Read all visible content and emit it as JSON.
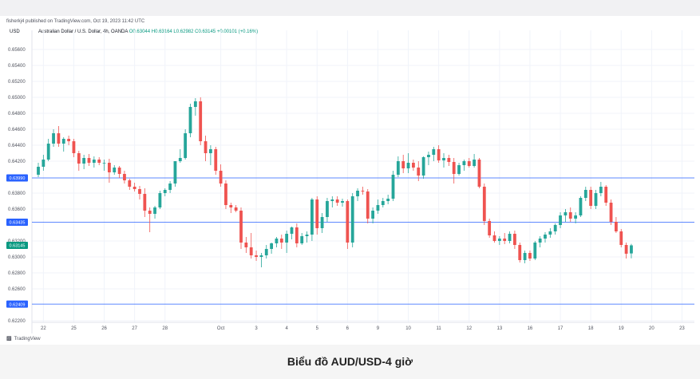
{
  "header": {
    "published_by": "fisherkj4 published on TradingView.com, Oct 19, 2023 11:42 UTC",
    "symbol": "Australian Dollar / U.S. Dollar, 4h, OANDA",
    "ohlc": "O0.63044 H0.63164 L0.62982 C0.63145 +0.00101 (+0.16%)",
    "currency": "USD"
  },
  "branding": {
    "label": "TradingView"
  },
  "caption": "Biểu đồ AUD/USD-4 giờ",
  "chart_data": {
    "type": "candlestick",
    "title": "Australian Dollar / U.S. Dollar, 4h, OANDA",
    "ylim": [
      0.6218,
      0.6578
    ],
    "yticks": [
      {
        "value": 0.656,
        "label": "0.65600"
      },
      {
        "value": 0.654,
        "label": "0.65400"
      },
      {
        "value": 0.652,
        "label": "0.65200"
      },
      {
        "value": 0.65,
        "label": "0.65000"
      },
      {
        "value": 0.648,
        "label": "0.64800"
      },
      {
        "value": 0.646,
        "label": "0.64600"
      },
      {
        "value": 0.644,
        "label": "0.64400"
      },
      {
        "value": 0.642,
        "label": "0.64200"
      },
      {
        "value": 0.638,
        "label": "0.63800"
      },
      {
        "value": 0.636,
        "label": "0.63600"
      },
      {
        "value": 0.632,
        "label": "0.63200"
      },
      {
        "value": 0.63,
        "label": "0.63000"
      },
      {
        "value": 0.628,
        "label": "0.62800"
      },
      {
        "value": 0.626,
        "label": "0.62600"
      },
      {
        "value": 0.622,
        "label": "0.62200"
      }
    ],
    "xticks": [
      "22",
      "25",
      "26",
      "27",
      "28",
      "Oct",
      "3",
      "4",
      "5",
      "6",
      "9",
      "10",
      "11",
      "12",
      "13",
      "16",
      "17",
      "18",
      "19",
      "20",
      "23"
    ],
    "xtick_index": [
      1,
      7,
      13,
      19,
      25,
      36,
      43,
      49,
      55,
      61,
      67,
      73,
      79,
      85,
      91,
      97,
      103,
      109,
      115,
      121,
      127
    ],
    "horizontal_lines": [
      {
        "value": 0.6399,
        "label": "0.63990",
        "color": "#2962ff"
      },
      {
        "value": 0.63435,
        "label": "0.63435",
        "color": "#2962ff"
      },
      {
        "value": 0.62409,
        "label": "0.62409",
        "color": "#2962ff"
      }
    ],
    "last_price": {
      "value": 0.63145,
      "label": "0.63145",
      "color": "#089981"
    },
    "colors": {
      "up": "#26a69a",
      "down": "#ef5350",
      "grid": "#f0f3fa",
      "level_line": "#2962ff"
    },
    "candles": [
      [
        0.6403,
        0.6418,
        0.64,
        0.6413
      ],
      [
        0.6413,
        0.6428,
        0.6408,
        0.6422
      ],
      [
        0.6422,
        0.6448,
        0.642,
        0.6442
      ],
      [
        0.6442,
        0.646,
        0.6438,
        0.6455
      ],
      [
        0.6455,
        0.6464,
        0.6438,
        0.6442
      ],
      [
        0.6442,
        0.645,
        0.6432,
        0.6448
      ],
      [
        0.6448,
        0.6452,
        0.644,
        0.6445
      ],
      [
        0.6445,
        0.6448,
        0.6425,
        0.643
      ],
      [
        0.643,
        0.6433,
        0.6408,
        0.6417
      ],
      [
        0.6417,
        0.6428,
        0.641,
        0.6424
      ],
      [
        0.6424,
        0.6429,
        0.6414,
        0.6418
      ],
      [
        0.6418,
        0.6426,
        0.6412,
        0.6422
      ],
      [
        0.6422,
        0.6425,
        0.6415,
        0.6418
      ],
      [
        0.6418,
        0.6422,
        0.6408,
        0.6418
      ],
      [
        0.6418,
        0.6423,
        0.6393,
        0.6406
      ],
      [
        0.6406,
        0.6415,
        0.6403,
        0.6412
      ],
      [
        0.6412,
        0.6414,
        0.6399,
        0.6404
      ],
      [
        0.6404,
        0.6408,
        0.6392,
        0.6396
      ],
      [
        0.6396,
        0.6398,
        0.6384,
        0.6388
      ],
      [
        0.6388,
        0.6393,
        0.6382,
        0.6385
      ],
      [
        0.6385,
        0.6389,
        0.6372,
        0.6379
      ],
      [
        0.6379,
        0.6386,
        0.635,
        0.6358
      ],
      [
        0.6358,
        0.6362,
        0.6331,
        0.6354
      ],
      [
        0.6354,
        0.6364,
        0.6348,
        0.6362
      ],
      [
        0.6362,
        0.6383,
        0.636,
        0.638
      ],
      [
        0.638,
        0.6386,
        0.6376,
        0.6384
      ],
      [
        0.6384,
        0.6395,
        0.638,
        0.6392
      ],
      [
        0.6392,
        0.642,
        0.6388,
        0.642
      ],
      [
        0.642,
        0.6435,
        0.6418,
        0.6424
      ],
      [
        0.6424,
        0.646,
        0.6422,
        0.6455
      ],
      [
        0.6455,
        0.6492,
        0.645,
        0.6488
      ],
      [
        0.6488,
        0.6499,
        0.6477,
        0.6495
      ],
      [
        0.6495,
        0.65,
        0.644,
        0.6445
      ],
      [
        0.6445,
        0.6452,
        0.642,
        0.643
      ],
      [
        0.643,
        0.644,
        0.6415,
        0.6435
      ],
      [
        0.6435,
        0.6438,
        0.6403,
        0.6408
      ],
      [
        0.6408,
        0.6416,
        0.6388,
        0.6392
      ],
      [
        0.6392,
        0.6396,
        0.636,
        0.6365
      ],
      [
        0.6365,
        0.6368,
        0.6355,
        0.6362
      ],
      [
        0.6362,
        0.6365,
        0.6356,
        0.6358
      ],
      [
        0.6358,
        0.6362,
        0.631,
        0.6318
      ],
      [
        0.6318,
        0.6325,
        0.6305,
        0.6312
      ],
      [
        0.6312,
        0.633,
        0.6298,
        0.6302
      ],
      [
        0.6302,
        0.6308,
        0.6295,
        0.63
      ],
      [
        0.63,
        0.6305,
        0.6287,
        0.6302
      ],
      [
        0.6302,
        0.6315,
        0.6298,
        0.631
      ],
      [
        0.631,
        0.6318,
        0.6304,
        0.6317
      ],
      [
        0.6317,
        0.6325,
        0.6312,
        0.6323
      ],
      [
        0.6323,
        0.6328,
        0.631,
        0.6318
      ],
      [
        0.6318,
        0.6333,
        0.6305,
        0.6329
      ],
      [
        0.6329,
        0.6338,
        0.6322,
        0.6337
      ],
      [
        0.6337,
        0.6342,
        0.6312,
        0.6317
      ],
      [
        0.6317,
        0.633,
        0.6315,
        0.6326
      ],
      [
        0.6326,
        0.6332,
        0.6318,
        0.6328
      ],
      [
        0.6328,
        0.6374,
        0.632,
        0.6372
      ],
      [
        0.6372,
        0.6376,
        0.6328,
        0.6336
      ],
      [
        0.6336,
        0.6355,
        0.633,
        0.635
      ],
      [
        0.635,
        0.6374,
        0.6344,
        0.637
      ],
      [
        0.637,
        0.6376,
        0.6362,
        0.6372
      ],
      [
        0.6372,
        0.6376,
        0.6364,
        0.6368
      ],
      [
        0.6368,
        0.6373,
        0.6363,
        0.637
      ],
      [
        0.637,
        0.6372,
        0.631,
        0.6318
      ],
      [
        0.6318,
        0.638,
        0.6312,
        0.6376
      ],
      [
        0.6376,
        0.6386,
        0.637,
        0.6383
      ],
      [
        0.6383,
        0.6388,
        0.6378,
        0.6382
      ],
      [
        0.6382,
        0.6385,
        0.6342,
        0.6348
      ],
      [
        0.6348,
        0.6362,
        0.6342,
        0.6358
      ],
      [
        0.6358,
        0.6372,
        0.6354,
        0.6365
      ],
      [
        0.6365,
        0.6374,
        0.6362,
        0.637
      ],
      [
        0.637,
        0.6378,
        0.6366,
        0.6373
      ],
      [
        0.6373,
        0.6408,
        0.637,
        0.6403
      ],
      [
        0.6403,
        0.6426,
        0.64,
        0.642
      ],
      [
        0.642,
        0.6428,
        0.6405,
        0.6411
      ],
      [
        0.6411,
        0.643,
        0.6405,
        0.6418
      ],
      [
        0.6418,
        0.6422,
        0.6408,
        0.6412
      ],
      [
        0.6412,
        0.642,
        0.6395,
        0.6402
      ],
      [
        0.6402,
        0.6426,
        0.6398,
        0.6425
      ],
      [
        0.6425,
        0.6432,
        0.6415,
        0.6428
      ],
      [
        0.6428,
        0.6438,
        0.642,
        0.6435
      ],
      [
        0.6435,
        0.644,
        0.6418,
        0.6421
      ],
      [
        0.6421,
        0.643,
        0.6412,
        0.6424
      ],
      [
        0.6424,
        0.6428,
        0.6414,
        0.6419
      ],
      [
        0.6419,
        0.6424,
        0.6392,
        0.6404
      ],
      [
        0.6404,
        0.6418,
        0.6402,
        0.6415
      ],
      [
        0.6415,
        0.6422,
        0.6408,
        0.642
      ],
      [
        0.642,
        0.6424,
        0.6412,
        0.6414
      ],
      [
        0.6414,
        0.6429,
        0.6412,
        0.6422
      ],
      [
        0.6422,
        0.6424,
        0.6386,
        0.6388
      ],
      [
        0.6388,
        0.6392,
        0.634,
        0.6345
      ],
      [
        0.6345,
        0.6348,
        0.6324,
        0.6327
      ],
      [
        0.6327,
        0.6332,
        0.6318,
        0.632
      ],
      [
        0.632,
        0.6326,
        0.6315,
        0.6323
      ],
      [
        0.6323,
        0.633,
        0.6316,
        0.632
      ],
      [
        0.632,
        0.6332,
        0.6317,
        0.6329
      ],
      [
        0.6329,
        0.6333,
        0.631,
        0.6315
      ],
      [
        0.6315,
        0.6318,
        0.6293,
        0.6296
      ],
      [
        0.6296,
        0.6308,
        0.6292,
        0.6305
      ],
      [
        0.6305,
        0.6308,
        0.6295,
        0.6298
      ],
      [
        0.6298,
        0.632,
        0.6296,
        0.6318
      ],
      [
        0.6318,
        0.6326,
        0.6312,
        0.6323
      ],
      [
        0.6323,
        0.6331,
        0.6318,
        0.6328
      ],
      [
        0.6328,
        0.6336,
        0.6324,
        0.6332
      ],
      [
        0.6332,
        0.6342,
        0.6328,
        0.634
      ],
      [
        0.634,
        0.6356,
        0.6336,
        0.6352
      ],
      [
        0.6352,
        0.636,
        0.6344,
        0.6356
      ],
      [
        0.6356,
        0.6362,
        0.6344,
        0.6348
      ],
      [
        0.6348,
        0.6356,
        0.6342,
        0.6352
      ],
      [
        0.6352,
        0.6376,
        0.635,
        0.6374
      ],
      [
        0.6374,
        0.6388,
        0.637,
        0.6384
      ],
      [
        0.6384,
        0.6388,
        0.636,
        0.6364
      ],
      [
        0.6364,
        0.6384,
        0.636,
        0.638
      ],
      [
        0.638,
        0.6394,
        0.6376,
        0.6388
      ],
      [
        0.6388,
        0.639,
        0.6364,
        0.6368
      ],
      [
        0.6368,
        0.6372,
        0.634,
        0.6344
      ],
      [
        0.6344,
        0.635,
        0.633,
        0.6332
      ],
      [
        0.6332,
        0.6335,
        0.6312,
        0.6315
      ],
      [
        0.6315,
        0.6318,
        0.6298,
        0.6304
      ],
      [
        0.63044,
        0.63164,
        0.62982,
        0.63145
      ]
    ]
  }
}
